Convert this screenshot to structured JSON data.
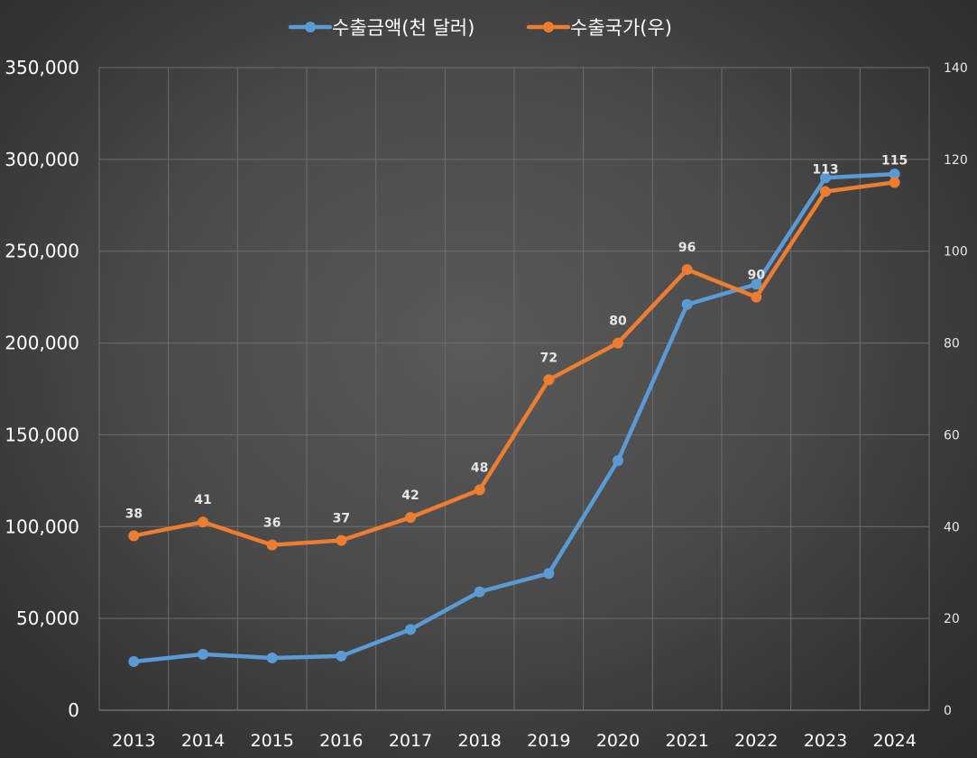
{
  "chart_data": {
    "type": "line",
    "categories": [
      "2013",
      "2014",
      "2015",
      "2016",
      "2017",
      "2018",
      "2019",
      "2020",
      "2021",
      "2022",
      "2023",
      "2024"
    ],
    "series": [
      {
        "name": "수출금액(천 달러)",
        "axis": "left",
        "color": "#5b9bd5",
        "values": [
          26500,
          30500,
          28500,
          29500,
          44000,
          64500,
          74500,
          136000,
          221000,
          232000,
          290000,
          292000
        ]
      },
      {
        "name": "수출국가(우)",
        "axis": "right",
        "color": "#ed7d31",
        "values": [
          38,
          41,
          36,
          37,
          42,
          48,
          72,
          80,
          96,
          90,
          113,
          115
        ],
        "data_labels": [
          "38",
          "41",
          "36",
          "37",
          "42",
          "48",
          "72",
          "80",
          "96",
          "90",
          "113",
          "115"
        ]
      }
    ],
    "y_left": {
      "min": 0,
      "max": 350000,
      "ticks": [
        "0",
        "50,000",
        "100,000",
        "150,000",
        "200,000",
        "250,000",
        "300,000",
        "350,000"
      ]
    },
    "y_right": {
      "min": 0,
      "max": 140,
      "ticks": [
        "0",
        "20",
        "40",
        "60",
        "80",
        "100",
        "120",
        "140"
      ]
    },
    "grid": true,
    "legend_position": "top"
  }
}
